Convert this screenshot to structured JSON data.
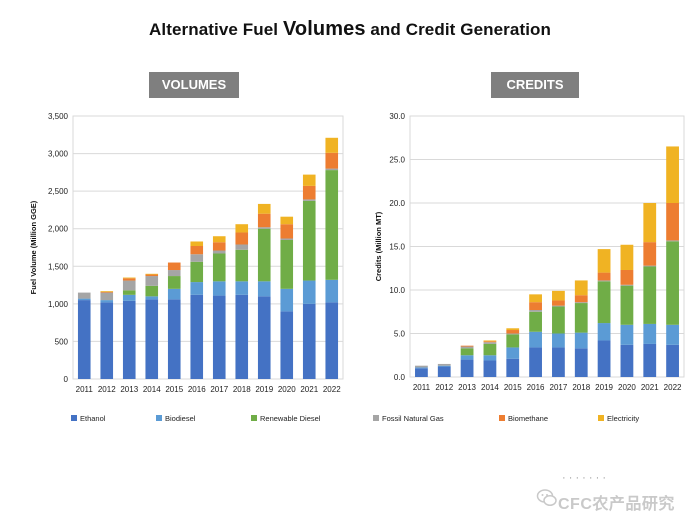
{
  "title": {
    "prefix": "Alternative Fuel ",
    "emph": "Volumes",
    "suffix": " and Credit Generation"
  },
  "panels": {
    "left": "VOLUMES",
    "right": "CREDITS"
  },
  "legend": [
    {
      "name": "Ethanol",
      "color": "#4472C4"
    },
    {
      "name": "Biodiesel",
      "color": "#5B9BD5"
    },
    {
      "name": "Renewable Diesel",
      "color": "#70AD47"
    },
    {
      "name": "Fossil Natural Gas",
      "color": "#A5A5A5"
    },
    {
      "name": "Biomethane",
      "color": "#ED7D31"
    },
    {
      "name": "Electricity",
      "color": "#F0B323"
    }
  ],
  "watermark": "· · · · · · ·",
  "logo": "CFC农产品研究",
  "chart_data": [
    {
      "type": "bar",
      "stacked": true,
      "title": "VOLUMES",
      "xlabel": "",
      "ylabel": "Fuel Volume (Million GGE)",
      "ylim": [
        0,
        3500
      ],
      "yticks": [
        0,
        500,
        1000,
        1500,
        2000,
        2500,
        3000,
        3500
      ],
      "ytick_labels": [
        "0",
        "500",
        "1,000",
        "1,500",
        "2,000",
        "2,500",
        "3,000",
        "3,500"
      ],
      "grid": true,
      "categories": [
        "2011",
        "2012",
        "2013",
        "2014",
        "2015",
        "2016",
        "2017",
        "2018",
        "2019",
        "2020",
        "2021",
        "2022"
      ],
      "series": [
        {
          "name": "Ethanol",
          "values": [
            1050,
            1020,
            1040,
            1060,
            1060,
            1120,
            1110,
            1120,
            1100,
            900,
            1000,
            1020
          ]
        },
        {
          "name": "Biodiesel",
          "values": [
            20,
            30,
            80,
            40,
            140,
            170,
            190,
            180,
            200,
            300,
            310,
            300
          ]
        },
        {
          "name": "Renewable Diesel",
          "values": [
            0,
            0,
            60,
            140,
            170,
            270,
            370,
            420,
            700,
            650,
            1060,
            1460
          ]
        },
        {
          "name": "Fossil Natural Gas",
          "values": [
            80,
            100,
            130,
            130,
            80,
            100,
            40,
            70,
            20,
            20,
            20,
            20
          ]
        },
        {
          "name": "Biomethane",
          "values": [
            0,
            10,
            30,
            20,
            100,
            110,
            110,
            160,
            180,
            190,
            180,
            210
          ]
        },
        {
          "name": "Electricity",
          "values": [
            0,
            10,
            10,
            10,
            0,
            60,
            80,
            110,
            130,
            100,
            150,
            200
          ]
        }
      ]
    },
    {
      "type": "bar",
      "stacked": true,
      "title": "CREDITS",
      "xlabel": "",
      "ylabel": "Credits (Million MT)",
      "ylim": [
        0,
        30
      ],
      "yticks": [
        0,
        5,
        10,
        15,
        20,
        25,
        30
      ],
      "ytick_labels": [
        "0.0",
        "5.0",
        "10.0",
        "15.0",
        "20.0",
        "25.0",
        "30.0"
      ],
      "grid": true,
      "categories": [
        "2011",
        "2012",
        "2013",
        "2014",
        "2015",
        "2016",
        "2017",
        "2018",
        "2019",
        "2020",
        "2021",
        "2022"
      ],
      "series": [
        {
          "name": "Ethanol",
          "values": [
            1.0,
            1.2,
            2.0,
            1.9,
            2.1,
            3.4,
            3.4,
            3.3,
            4.2,
            3.7,
            3.8,
            3.7
          ]
        },
        {
          "name": "Biodiesel",
          "values": [
            0.1,
            0.1,
            0.5,
            0.6,
            1.3,
            1.8,
            1.6,
            1.8,
            2.0,
            2.3,
            2.3,
            2.3
          ]
        },
        {
          "name": "Renewable Diesel",
          "values": [
            0,
            0,
            0.8,
            1.3,
            1.5,
            2.3,
            3.1,
            3.4,
            4.8,
            4.5,
            6.6,
            9.6
          ]
        },
        {
          "name": "Fossil Natural Gas",
          "values": [
            0.2,
            0.2,
            0.2,
            0.2,
            0.1,
            0.2,
            0.1,
            0.1,
            0.1,
            0.1,
            0.1,
            0.1
          ]
        },
        {
          "name": "Biomethane",
          "values": [
            0,
            0,
            0.1,
            0.1,
            0.4,
            0.9,
            0.6,
            0.8,
            0.9,
            1.7,
            2.7,
            4.3
          ]
        },
        {
          "name": "Electricity",
          "values": [
            0,
            0,
            0,
            0.1,
            0.2,
            0.9,
            1.1,
            1.7,
            2.7,
            2.9,
            4.5,
            6.5
          ]
        }
      ]
    }
  ]
}
